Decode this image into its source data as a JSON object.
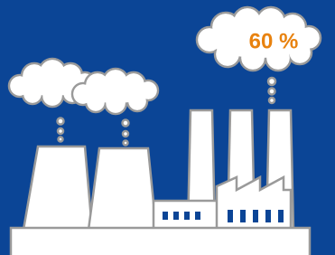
{
  "cloud_label": "60 %"
}
